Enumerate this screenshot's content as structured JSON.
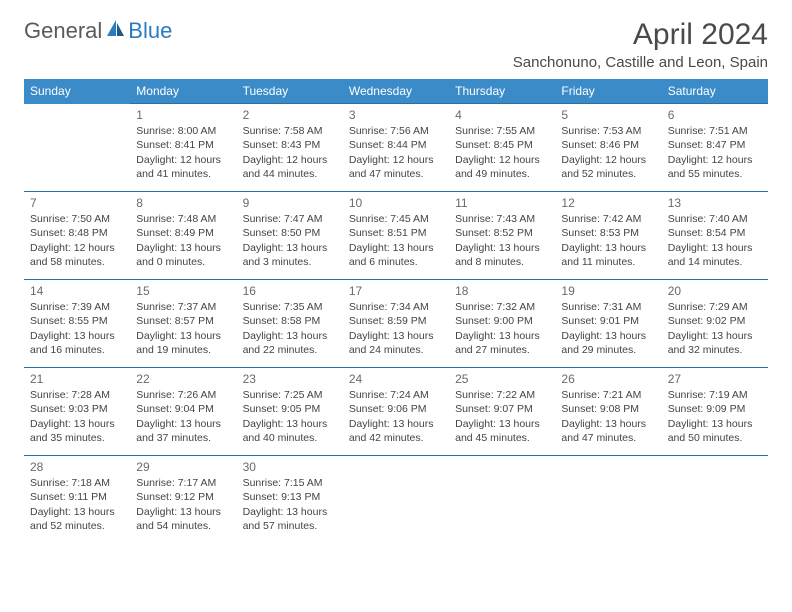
{
  "logo": {
    "text1": "General",
    "text2": "Blue"
  },
  "header": {
    "month_title": "April 2024",
    "location": "Sanchonuno, Castille and Leon, Spain"
  },
  "colors": {
    "header_bg": "#3b8bc9",
    "header_text": "#ffffff",
    "row_divider": "#2b6fa5",
    "body_text": "#444444",
    "title_text": "#4a4a4a"
  },
  "weekdays": [
    "Sunday",
    "Monday",
    "Tuesday",
    "Wednesday",
    "Thursday",
    "Friday",
    "Saturday"
  ],
  "weeks": [
    [
      null,
      {
        "d": "1",
        "sr": "Sunrise: 8:00 AM",
        "ss": "Sunset: 8:41 PM",
        "dl1": "Daylight: 12 hours",
        "dl2": "and 41 minutes."
      },
      {
        "d": "2",
        "sr": "Sunrise: 7:58 AM",
        "ss": "Sunset: 8:43 PM",
        "dl1": "Daylight: 12 hours",
        "dl2": "and 44 minutes."
      },
      {
        "d": "3",
        "sr": "Sunrise: 7:56 AM",
        "ss": "Sunset: 8:44 PM",
        "dl1": "Daylight: 12 hours",
        "dl2": "and 47 minutes."
      },
      {
        "d": "4",
        "sr": "Sunrise: 7:55 AM",
        "ss": "Sunset: 8:45 PM",
        "dl1": "Daylight: 12 hours",
        "dl2": "and 49 minutes."
      },
      {
        "d": "5",
        "sr": "Sunrise: 7:53 AM",
        "ss": "Sunset: 8:46 PM",
        "dl1": "Daylight: 12 hours",
        "dl2": "and 52 minutes."
      },
      {
        "d": "6",
        "sr": "Sunrise: 7:51 AM",
        "ss": "Sunset: 8:47 PM",
        "dl1": "Daylight: 12 hours",
        "dl2": "and 55 minutes."
      }
    ],
    [
      {
        "d": "7",
        "sr": "Sunrise: 7:50 AM",
        "ss": "Sunset: 8:48 PM",
        "dl1": "Daylight: 12 hours",
        "dl2": "and 58 minutes."
      },
      {
        "d": "8",
        "sr": "Sunrise: 7:48 AM",
        "ss": "Sunset: 8:49 PM",
        "dl1": "Daylight: 13 hours",
        "dl2": "and 0 minutes."
      },
      {
        "d": "9",
        "sr": "Sunrise: 7:47 AM",
        "ss": "Sunset: 8:50 PM",
        "dl1": "Daylight: 13 hours",
        "dl2": "and 3 minutes."
      },
      {
        "d": "10",
        "sr": "Sunrise: 7:45 AM",
        "ss": "Sunset: 8:51 PM",
        "dl1": "Daylight: 13 hours",
        "dl2": "and 6 minutes."
      },
      {
        "d": "11",
        "sr": "Sunrise: 7:43 AM",
        "ss": "Sunset: 8:52 PM",
        "dl1": "Daylight: 13 hours",
        "dl2": "and 8 minutes."
      },
      {
        "d": "12",
        "sr": "Sunrise: 7:42 AM",
        "ss": "Sunset: 8:53 PM",
        "dl1": "Daylight: 13 hours",
        "dl2": "and 11 minutes."
      },
      {
        "d": "13",
        "sr": "Sunrise: 7:40 AM",
        "ss": "Sunset: 8:54 PM",
        "dl1": "Daylight: 13 hours",
        "dl2": "and 14 minutes."
      }
    ],
    [
      {
        "d": "14",
        "sr": "Sunrise: 7:39 AM",
        "ss": "Sunset: 8:55 PM",
        "dl1": "Daylight: 13 hours",
        "dl2": "and 16 minutes."
      },
      {
        "d": "15",
        "sr": "Sunrise: 7:37 AM",
        "ss": "Sunset: 8:57 PM",
        "dl1": "Daylight: 13 hours",
        "dl2": "and 19 minutes."
      },
      {
        "d": "16",
        "sr": "Sunrise: 7:35 AM",
        "ss": "Sunset: 8:58 PM",
        "dl1": "Daylight: 13 hours",
        "dl2": "and 22 minutes."
      },
      {
        "d": "17",
        "sr": "Sunrise: 7:34 AM",
        "ss": "Sunset: 8:59 PM",
        "dl1": "Daylight: 13 hours",
        "dl2": "and 24 minutes."
      },
      {
        "d": "18",
        "sr": "Sunrise: 7:32 AM",
        "ss": "Sunset: 9:00 PM",
        "dl1": "Daylight: 13 hours",
        "dl2": "and 27 minutes."
      },
      {
        "d": "19",
        "sr": "Sunrise: 7:31 AM",
        "ss": "Sunset: 9:01 PM",
        "dl1": "Daylight: 13 hours",
        "dl2": "and 29 minutes."
      },
      {
        "d": "20",
        "sr": "Sunrise: 7:29 AM",
        "ss": "Sunset: 9:02 PM",
        "dl1": "Daylight: 13 hours",
        "dl2": "and 32 minutes."
      }
    ],
    [
      {
        "d": "21",
        "sr": "Sunrise: 7:28 AM",
        "ss": "Sunset: 9:03 PM",
        "dl1": "Daylight: 13 hours",
        "dl2": "and 35 minutes."
      },
      {
        "d": "22",
        "sr": "Sunrise: 7:26 AM",
        "ss": "Sunset: 9:04 PM",
        "dl1": "Daylight: 13 hours",
        "dl2": "and 37 minutes."
      },
      {
        "d": "23",
        "sr": "Sunrise: 7:25 AM",
        "ss": "Sunset: 9:05 PM",
        "dl1": "Daylight: 13 hours",
        "dl2": "and 40 minutes."
      },
      {
        "d": "24",
        "sr": "Sunrise: 7:24 AM",
        "ss": "Sunset: 9:06 PM",
        "dl1": "Daylight: 13 hours",
        "dl2": "and 42 minutes."
      },
      {
        "d": "25",
        "sr": "Sunrise: 7:22 AM",
        "ss": "Sunset: 9:07 PM",
        "dl1": "Daylight: 13 hours",
        "dl2": "and 45 minutes."
      },
      {
        "d": "26",
        "sr": "Sunrise: 7:21 AM",
        "ss": "Sunset: 9:08 PM",
        "dl1": "Daylight: 13 hours",
        "dl2": "and 47 minutes."
      },
      {
        "d": "27",
        "sr": "Sunrise: 7:19 AM",
        "ss": "Sunset: 9:09 PM",
        "dl1": "Daylight: 13 hours",
        "dl2": "and 50 minutes."
      }
    ],
    [
      {
        "d": "28",
        "sr": "Sunrise: 7:18 AM",
        "ss": "Sunset: 9:11 PM",
        "dl1": "Daylight: 13 hours",
        "dl2": "and 52 minutes."
      },
      {
        "d": "29",
        "sr": "Sunrise: 7:17 AM",
        "ss": "Sunset: 9:12 PM",
        "dl1": "Daylight: 13 hours",
        "dl2": "and 54 minutes."
      },
      {
        "d": "30",
        "sr": "Sunrise: 7:15 AM",
        "ss": "Sunset: 9:13 PM",
        "dl1": "Daylight: 13 hours",
        "dl2": "and 57 minutes."
      },
      null,
      null,
      null,
      null
    ]
  ]
}
